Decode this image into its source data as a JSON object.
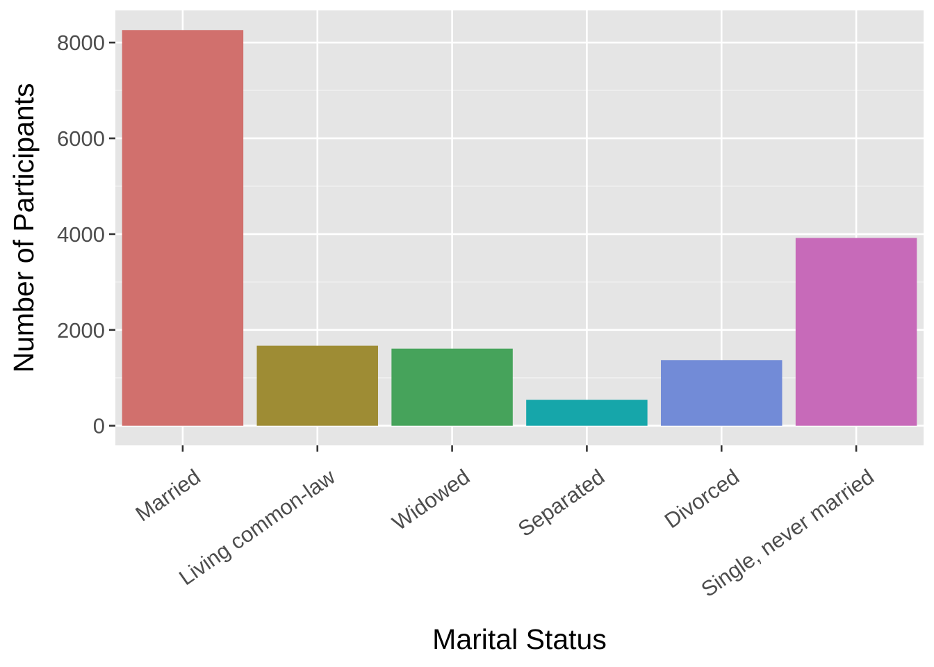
{
  "chart_data": {
    "type": "bar",
    "xlabel": "Marital Status",
    "ylabel": "Number of Participants",
    "categories": [
      "Married",
      "Living common-law",
      "Widowed",
      "Separated",
      "Divorced",
      "Single, never married"
    ],
    "values": [
      8260,
      1670,
      1610,
      540,
      1370,
      3920
    ],
    "colors": [
      "#d1706d",
      "#9e8c34",
      "#46a35b",
      "#16a6aa",
      "#728bd7",
      "#c76ab9"
    ],
    "yticks": [
      0,
      2000,
      4000,
      6000,
      8000
    ],
    "ylim": [
      -410,
      8670
    ],
    "grid": true,
    "legend": "none"
  }
}
